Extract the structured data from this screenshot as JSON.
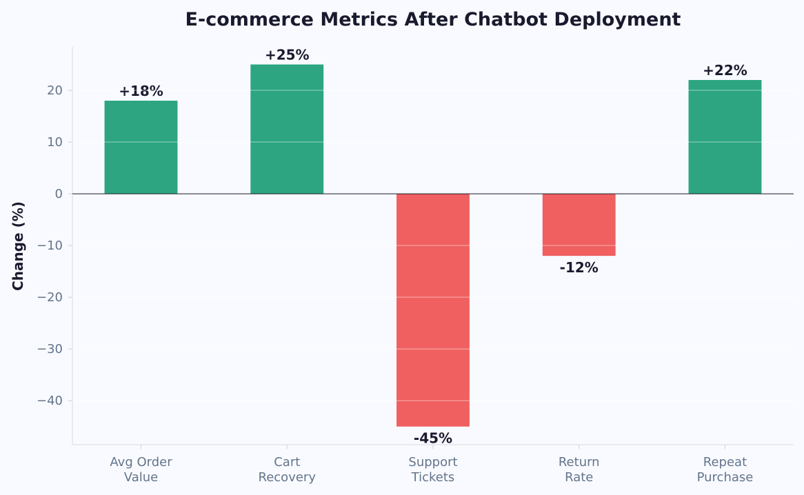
{
  "chart_data": {
    "type": "bar",
    "title": "E-commerce Metrics After Chatbot Deployment",
    "xlabel": "",
    "ylabel": "Change (%)",
    "categories": [
      [
        "Avg Order",
        "Value"
      ],
      [
        "Cart",
        "Recovery"
      ],
      [
        "Support",
        "Tickets"
      ],
      [
        "Return",
        "Rate"
      ],
      [
        "Repeat",
        "Purchase"
      ]
    ],
    "values": [
      18,
      25,
      -45,
      -12,
      22
    ],
    "data_labels": [
      "+18%",
      "+25%",
      "-45%",
      "-12%",
      "+22%"
    ],
    "ylim": [
      -48.5,
      28.4
    ],
    "yticks": [
      20,
      10,
      0,
      -10,
      -20,
      -30,
      -40
    ],
    "ytick_labels": [
      "20",
      "10",
      "0",
      "−10",
      "−20",
      "−30",
      "−40"
    ],
    "grid": true,
    "colors": {
      "positive": "#2ca580",
      "negative": "#f06060",
      "background": "#f8faff"
    }
  }
}
